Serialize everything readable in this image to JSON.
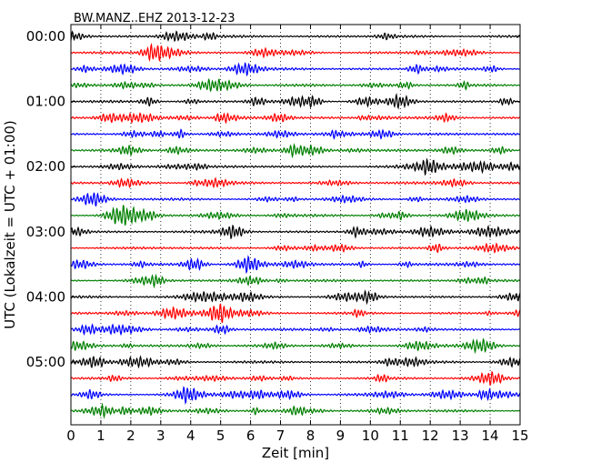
{
  "chart_data": {
    "type": "line",
    "title": "BW.MANZ..EHZ 2013-12-23",
    "xlabel": "Zeit  [min]",
    "ylabel": "UTC (Lokalzeit = UTC + 01:00)",
    "xlim": [
      0,
      15
    ],
    "x_ticks": [
      "0",
      "1",
      "2",
      "3",
      "4",
      "5",
      "6",
      "7",
      "8",
      "9",
      "10",
      "11",
      "12",
      "13",
      "14",
      "15"
    ],
    "y_ticks": [
      {
        "label": "00:00",
        "row": 0
      },
      {
        "label": "01:00",
        "row": 4
      },
      {
        "label": "02:00",
        "row": 8
      },
      {
        "label": "03:00",
        "row": 12
      },
      {
        "label": "04:00",
        "row": 16
      },
      {
        "label": "05:00",
        "row": 20
      }
    ],
    "row_minutes": 15,
    "row_count": 24,
    "trace_colors": [
      "#000000",
      "#ff0000",
      "#0000ff",
      "#008000"
    ],
    "grid": "vertical dotted lines at each minute"
  }
}
